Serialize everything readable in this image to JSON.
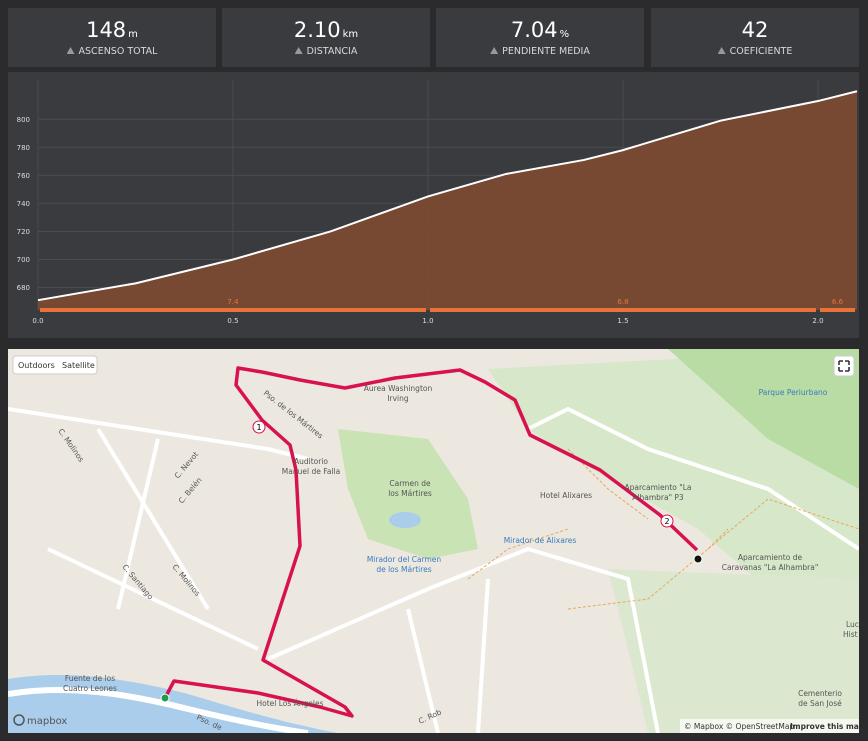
{
  "stats": [
    {
      "value": "148",
      "unit": "m",
      "label": "ASCENSO TOTAL"
    },
    {
      "value": "2.10",
      "unit": "km",
      "label": "DISTANCIA"
    },
    {
      "value": "7.04",
      "unit": "%",
      "label": "PENDIENTE MEDIA"
    },
    {
      "value": "42",
      "label": "COEFICIENTE"
    }
  ],
  "chart_data": {
    "type": "area",
    "x": [
      0,
      0.25,
      0.5,
      0.75,
      1.0,
      1.2,
      1.4,
      1.5,
      1.75,
      2.0,
      2.1
    ],
    "values": [
      671,
      683,
      700,
      720,
      745,
      761,
      771,
      778,
      799,
      813,
      820
    ],
    "xlim": [
      0,
      2.1
    ],
    "ylim": [
      664,
      828
    ],
    "xticks": [
      {
        "value": 0,
        "label": "0.0"
      },
      0.5,
      {
        "value": 1,
        "label": "1.0"
      },
      1.5,
      {
        "value": 2,
        "label": "2.0"
      }
    ],
    "yticks": [
      680,
      700,
      720,
      740,
      760,
      780,
      800
    ],
    "grid": true,
    "color": "#7a4a33",
    "line_color": "#ffffff",
    "segments": [
      {
        "from": 0,
        "to": 1.0,
        "value": 7.4
      },
      {
        "from": 1.0,
        "to": 2.0,
        "value": 6.8
      },
      {
        "from": 2.0,
        "to": 2.1,
        "value": 6.6
      }
    ],
    "segment_color": "#e8733a"
  },
  "map": {
    "buttons": [
      "Outdoors",
      "Satellite"
    ],
    "labels": [
      "Pso. de los Mártires",
      "Aurea Washington",
      "Irving",
      "Auditorio",
      "Manuel de Falla",
      "Carmen de",
      "los Mártires",
      "Mirador del Carmen",
      "de los Mártires",
      "Hotel Alixares",
      "Mirador de Alixares",
      "Aparcamiento \"La",
      "Alhambra\" P3",
      "Aparcamiento de",
      "Caravanas \"La Alhambra\"",
      "Parque Periurbano",
      "C. Molinos",
      "C. Nevot",
      "C. Belén",
      "C. Santiago",
      "C. Molinos",
      "Fuente de los",
      "Cuatro Leones",
      "Hotel Los Ángeles",
      "Pso. de",
      "C. Rob",
      "Cementerio",
      "de San José",
      "Luc",
      "Hist"
    ],
    "markers": [
      "1",
      "2"
    ],
    "attribution": "© Mapbox © OpenStreetMap",
    "improve": "Improve this map",
    "logo": "mapbox"
  }
}
